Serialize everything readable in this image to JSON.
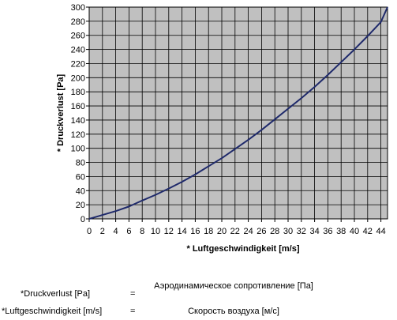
{
  "chart_data": {
    "type": "line",
    "title": "",
    "xlabel": "* Luftgeschwindigkeit [m/s]",
    "ylabel": "* Druckverlust [Pa]",
    "xlim": [
      0,
      45
    ],
    "ylim": [
      0,
      300
    ],
    "x_ticks": [
      0,
      2,
      4,
      6,
      8,
      10,
      12,
      14,
      16,
      18,
      20,
      22,
      24,
      26,
      28,
      30,
      32,
      34,
      36,
      38,
      40,
      42,
      44
    ],
    "y_ticks": [
      0,
      20,
      40,
      60,
      80,
      100,
      120,
      140,
      160,
      180,
      200,
      220,
      240,
      260,
      280,
      300
    ],
    "grid": true,
    "background_color": "#c0c0c0",
    "grid_color": "#000000",
    "series": [
      {
        "name": "",
        "color": "#1f2a6b",
        "x": [
          0,
          2,
          4,
          6,
          8,
          10,
          12,
          14,
          16,
          18,
          20,
          22,
          24,
          26,
          28,
          30,
          32,
          34,
          36,
          38,
          40,
          42,
          44,
          45
        ],
        "y": [
          0,
          5.5,
          11,
          17.5,
          26,
          34,
          43,
          52.5,
          63,
          74.5,
          86,
          99,
          112,
          126,
          141,
          156,
          171,
          187,
          204,
          222,
          240,
          259,
          279,
          300
        ]
      }
    ]
  },
  "legend": [
    {
      "de": "*Druckverlust [Pa]",
      "eq": "=",
      "ru": "Аэродинамическое сопротивление [Па]"
    },
    {
      "de": "*Luftgeschwindigkeit [m/s]",
      "eq": "=",
      "ru": "Скорость воздуха [м/с]"
    }
  ]
}
